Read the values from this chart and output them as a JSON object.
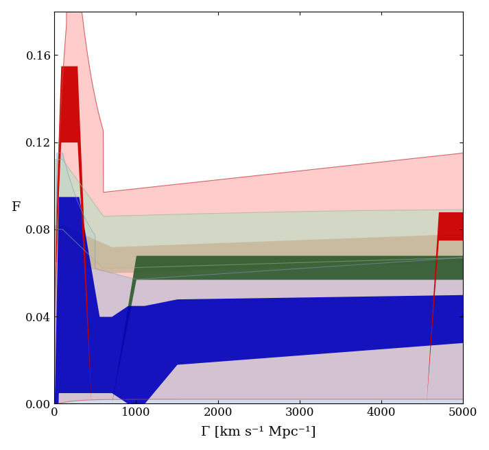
{
  "xlabel": "Γ [km s⁻¹ Mpc⁻¹]",
  "ylabel": "F",
  "xlim": [
    0,
    5000
  ],
  "ylim": [
    0,
    0.18
  ],
  "yticks": [
    0.0,
    0.04,
    0.08,
    0.12,
    0.16
  ],
  "xticks": [
    0,
    1000,
    2000,
    3000,
    4000,
    5000
  ],
  "figsize": [
    7.13,
    6.57
  ],
  "dpi": 100,
  "background": "#ffffff",
  "red_outer_color": "#ffbbbb",
  "red_outer_edge": "#cc4444",
  "red_inner_color": "#cc0000",
  "green_outer_color": "#c5ddc5",
  "green_outer_edge": "#99bb99",
  "tan_color": "#c4b090",
  "dark_green_color": "#2d5a2d",
  "blue_outer_color": "#a8bbd8",
  "blue_inner_color": "#0000bb"
}
